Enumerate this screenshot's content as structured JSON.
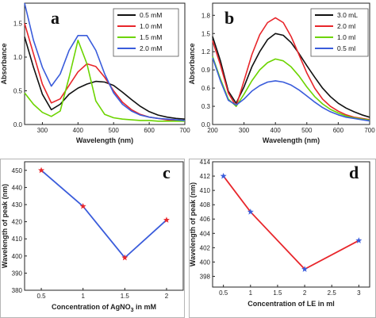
{
  "chart_data": [
    {
      "panel": "a",
      "type": "line",
      "xlabel": "Wavelength (nm)",
      "ylabel": "Absorbance",
      "xlim": [
        250,
        700
      ],
      "ylim": [
        0,
        1.8
      ],
      "xticks": [
        300,
        400,
        500,
        600,
        700
      ],
      "yticks": [
        0.0,
        0.5,
        1.0,
        1.5
      ],
      "legend_position": "top-right",
      "x": [
        250,
        275,
        300,
        325,
        350,
        375,
        400,
        425,
        450,
        475,
        500,
        525,
        550,
        575,
        600,
        625,
        650,
        675,
        700
      ],
      "series": [
        {
          "name": "0.5 mM",
          "color": "#111111",
          "values": [
            1.3,
            0.85,
            0.45,
            0.22,
            0.3,
            0.45,
            0.54,
            0.6,
            0.64,
            0.63,
            0.58,
            0.48,
            0.37,
            0.27,
            0.19,
            0.14,
            0.11,
            0.09,
            0.08
          ]
        },
        {
          "name": "1.0 mM",
          "color": "#e8262b",
          "values": [
            1.5,
            1.05,
            0.6,
            0.32,
            0.38,
            0.58,
            0.78,
            0.9,
            0.86,
            0.7,
            0.5,
            0.33,
            0.22,
            0.15,
            0.11,
            0.09,
            0.07,
            0.06,
            0.06
          ]
        },
        {
          "name": "1.5 mM",
          "color": "#6cd400",
          "values": [
            0.47,
            0.3,
            0.18,
            0.12,
            0.2,
            0.7,
            1.25,
            0.9,
            0.35,
            0.15,
            0.1,
            0.08,
            0.07,
            0.06,
            0.06,
            0.05,
            0.05,
            0.05,
            0.05
          ]
        },
        {
          "name": "2.0 mM",
          "color": "#3a5cdb",
          "values": [
            1.8,
            1.25,
            0.85,
            0.57,
            0.75,
            1.1,
            1.32,
            1.32,
            1.1,
            0.75,
            0.47,
            0.3,
            0.2,
            0.14,
            0.11,
            0.09,
            0.08,
            0.07,
            0.06
          ]
        }
      ]
    },
    {
      "panel": "b",
      "type": "line",
      "xlabel": "Wavelength (nm)",
      "ylabel": "Absorbance",
      "xlim": [
        200,
        700
      ],
      "ylim": [
        0,
        2.0
      ],
      "xticks": [
        200,
        300,
        400,
        500,
        600,
        700
      ],
      "yticks": [
        0.0,
        0.3,
        0.6,
        0.9,
        1.2,
        1.5,
        1.8
      ],
      "legend_position": "top-right",
      "x": [
        200,
        225,
        250,
        275,
        300,
        325,
        350,
        375,
        400,
        425,
        450,
        475,
        500,
        525,
        550,
        575,
        600,
        625,
        650,
        675,
        700
      ],
      "series": [
        {
          "name": "3.0 mL",
          "color": "#111111",
          "values": [
            1.45,
            1.05,
            0.55,
            0.35,
            0.62,
            0.95,
            1.2,
            1.4,
            1.5,
            1.47,
            1.35,
            1.17,
            0.97,
            0.78,
            0.6,
            0.46,
            0.35,
            0.27,
            0.21,
            0.16,
            0.12
          ]
        },
        {
          "name": "2.0 ml",
          "color": "#e8262b",
          "values": [
            1.38,
            0.98,
            0.52,
            0.3,
            0.72,
            1.15,
            1.48,
            1.68,
            1.76,
            1.68,
            1.45,
            1.15,
            0.85,
            0.6,
            0.42,
            0.3,
            0.22,
            0.16,
            0.12,
            0.1,
            0.08
          ]
        },
        {
          "name": "1.0 ml",
          "color": "#6cd400",
          "values": [
            1.12,
            0.75,
            0.42,
            0.3,
            0.5,
            0.72,
            0.9,
            1.02,
            1.08,
            1.05,
            0.95,
            0.8,
            0.62,
            0.46,
            0.34,
            0.25,
            0.19,
            0.14,
            0.11,
            0.09,
            0.07
          ]
        },
        {
          "name": "0.5 ml",
          "color": "#3a5cdb",
          "values": [
            1.1,
            0.72,
            0.4,
            0.32,
            0.42,
            0.55,
            0.64,
            0.7,
            0.72,
            0.7,
            0.65,
            0.57,
            0.47,
            0.37,
            0.28,
            0.21,
            0.16,
            0.12,
            0.1,
            0.08,
            0.06
          ]
        }
      ]
    },
    {
      "panel": "c",
      "type": "line",
      "xlabel_parts": [
        "Concentration of AgNO",
        "3",
        " in mM"
      ],
      "ylabel": "Wavelength of peak (nm)",
      "xlim": [
        0.3,
        2.2
      ],
      "ylim": [
        380,
        455
      ],
      "xticks": [
        0.5,
        1.0,
        1.5,
        2.0
      ],
      "yticks": [
        380,
        390,
        400,
        410,
        420,
        430,
        440,
        450
      ],
      "line_color": "#3a5cdb",
      "marker_color": "#e8262b",
      "x": [
        0.5,
        1.0,
        1.5,
        2.0
      ],
      "values": [
        450,
        429,
        399,
        421
      ]
    },
    {
      "panel": "d",
      "type": "line",
      "xlabel": "Concentration of LE in ml",
      "ylabel": "Wavelength of peak (nm)",
      "xlim": [
        0.3,
        3.2
      ],
      "ylim": [
        396.5,
        414
      ],
      "xticks": [
        0.5,
        1.0,
        1.5,
        2.0,
        2.5,
        3.0
      ],
      "yticks": [
        398,
        400,
        402,
        404,
        406,
        408,
        410,
        412,
        414
      ],
      "line_color": "#e8262b",
      "marker_color": "#3a5cdb",
      "x": [
        0.5,
        1.0,
        2.0,
        3.0
      ],
      "values": [
        412,
        407,
        399,
        403
      ]
    }
  ]
}
